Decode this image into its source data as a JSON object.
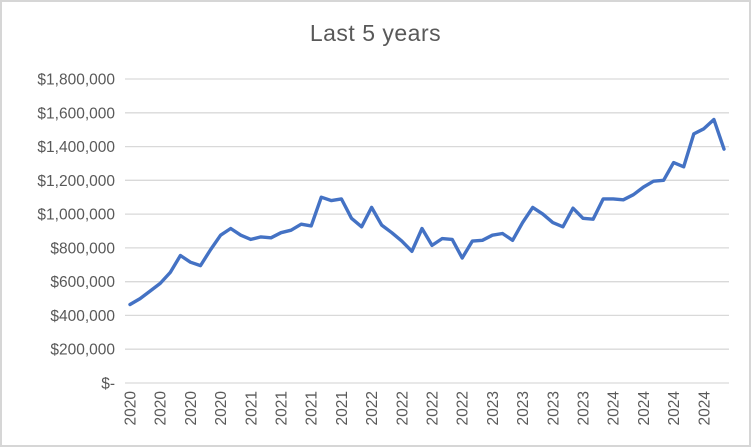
{
  "window": {
    "background": "#FFFFFF",
    "border_color": "#D6D6D6"
  },
  "chart_data": {
    "type": "line",
    "title": "Last 5 years",
    "xlabel": "",
    "ylabel": "",
    "legend": "none",
    "grid": "horizontal",
    "ylim": [
      0,
      1800000
    ],
    "series": [
      {
        "name": "",
        "values": [
          465000,
          500000,
          545000,
          590000,
          655000,
          755000,
          715000,
          695000,
          790000,
          875000,
          915000,
          875000,
          850000,
          865000,
          860000,
          890000,
          905000,
          940000,
          930000,
          1100000,
          1080000,
          1090000,
          975000,
          925000,
          1040000,
          935000,
          890000,
          840000,
          780000,
          915000,
          815000,
          855000,
          850000,
          740000,
          840000,
          845000,
          875000,
          885000,
          845000,
          950000,
          1040000,
          1000000,
          950000,
          925000,
          1035000,
          975000,
          970000,
          1090000,
          1090000,
          1085000,
          1115000,
          1160000,
          1195000,
          1200000,
          1305000,
          1280000,
          1475000,
          1505000,
          1560000,
          1385000
        ]
      }
    ],
    "x_tick_labels": [
      "2020",
      "2020",
      "2020",
      "2020",
      "2021",
      "2021",
      "2021",
      "2021",
      "2022",
      "2022",
      "2022",
      "2022",
      "2023",
      "2023",
      "2023",
      "2023",
      "2024",
      "2024",
      "2024",
      "2024"
    ],
    "x_tick_step": 3,
    "y_ticks": [
      {
        "label": "$-",
        "value": 0
      },
      {
        "label": "$200,000",
        "value": 200000
      },
      {
        "label": "$400,000",
        "value": 400000
      },
      {
        "label": "$600,000",
        "value": 600000
      },
      {
        "label": "$800,000",
        "value": 800000
      },
      {
        "label": "$1,000,000",
        "value": 1000000
      },
      {
        "label": "$1,200,000",
        "value": 1200000
      },
      {
        "label": "$1,400,000",
        "value": 1400000
      },
      {
        "label": "$1,600,000",
        "value": 1600000
      },
      {
        "label": "$1,800,000",
        "value": 1800000
      }
    ],
    "colors": {
      "line": "#4472C4",
      "gridline": "#D9D9D9",
      "text": "#595959",
      "background": "#FFFFFF"
    }
  }
}
